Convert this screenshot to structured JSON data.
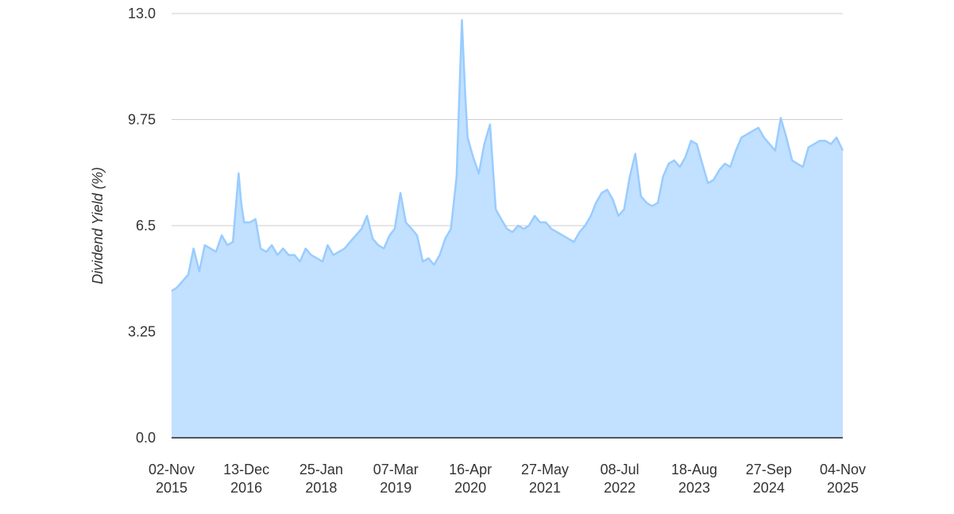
{
  "chart_data": {
    "type": "area",
    "title": "",
    "xlabel": "",
    "ylabel": "Dividend Yield (%)",
    "ylim": [
      0,
      13
    ],
    "xlim": [
      "2015-11-02",
      "2025-11-04"
    ],
    "yticks": [
      "0.0",
      "3.25",
      "6.5",
      "9.75",
      "13.0"
    ],
    "xticks": [
      {
        "date": "2015-11-02",
        "line1": "02-Nov",
        "line2": "2015"
      },
      {
        "date": "2016-12-13",
        "line1": "13-Dec",
        "line2": "2016"
      },
      {
        "date": "2018-01-25",
        "line1": "25-Jan",
        "line2": "2018"
      },
      {
        "date": "2019-03-07",
        "line1": "07-Mar",
        "line2": "2019"
      },
      {
        "date": "2020-04-16",
        "line1": "16-Apr",
        "line2": "2020"
      },
      {
        "date": "2021-05-27",
        "line1": "27-May",
        "line2": "2021"
      },
      {
        "date": "2022-07-08",
        "line1": "08-Jul",
        "line2": "2022"
      },
      {
        "date": "2023-08-18",
        "line1": "18-Aug",
        "line2": "2023"
      },
      {
        "date": "2024-09-27",
        "line1": "27-Sep",
        "line2": "2024"
      },
      {
        "date": "2025-11-04",
        "line1": "04-Nov",
        "line2": "2025"
      }
    ],
    "grid": true,
    "colors": {
      "line": "#99ccff",
      "fill": "#c2e0ff",
      "grid": "#cccccc",
      "baseline": "#333333"
    },
    "series": [
      {
        "x": [
          "2015-11-02",
          "2015-12-01",
          "2016-01-01",
          "2016-02-01",
          "2016-03-01",
          "2016-04-01",
          "2016-05-01",
          "2016-06-01",
          "2016-07-01",
          "2016-08-01",
          "2016-09-01",
          "2016-10-01",
          "2016-11-01",
          "2016-11-15",
          "2016-12-01",
          "2017-01-01",
          "2017-02-01",
          "2017-03-01",
          "2017-04-01",
          "2017-05-01",
          "2017-06-01",
          "2017-07-01",
          "2017-08-01",
          "2017-09-01",
          "2017-10-01",
          "2017-11-01",
          "2017-12-01",
          "2018-01-01",
          "2018-02-01",
          "2018-03-01",
          "2018-04-01",
          "2018-05-01",
          "2018-06-01",
          "2018-07-01",
          "2018-08-01",
          "2018-09-01",
          "2018-10-01",
          "2018-11-01",
          "2018-12-01",
          "2019-01-01",
          "2019-02-01",
          "2019-03-01",
          "2019-04-01",
          "2019-05-01",
          "2019-06-01",
          "2019-07-01",
          "2019-08-01",
          "2019-09-01",
          "2019-10-01",
          "2019-11-01",
          "2019-12-01",
          "2020-01-01",
          "2020-02-01",
          "2020-03-01",
          "2020-03-19",
          "2020-04-01",
          "2020-05-01",
          "2020-06-01",
          "2020-07-01",
          "2020-08-01",
          "2020-09-01",
          "2020-10-01",
          "2020-11-01",
          "2020-12-01",
          "2021-01-01",
          "2021-02-01",
          "2021-03-01",
          "2021-04-01",
          "2021-05-01",
          "2021-06-01",
          "2021-07-01",
          "2021-08-01",
          "2021-09-01",
          "2021-10-01",
          "2021-11-01",
          "2021-12-01",
          "2022-01-01",
          "2022-02-01",
          "2022-03-01",
          "2022-04-01",
          "2022-05-01",
          "2022-06-01",
          "2022-07-01",
          "2022-08-01",
          "2022-09-01",
          "2022-10-01",
          "2022-11-01",
          "2022-12-01",
          "2023-01-01",
          "2023-02-01",
          "2023-03-01",
          "2023-04-01",
          "2023-05-01",
          "2023-06-01",
          "2023-07-01",
          "2023-08-01",
          "2023-09-01",
          "2023-10-01",
          "2023-11-01",
          "2023-12-01",
          "2024-01-01",
          "2024-02-01",
          "2024-03-01",
          "2024-04-01",
          "2024-05-01",
          "2024-06-01",
          "2024-07-01",
          "2024-08-01",
          "2024-09-01",
          "2024-10-01",
          "2024-11-01",
          "2024-12-01",
          "2025-01-01",
          "2025-02-01",
          "2025-03-01",
          "2025-04-01",
          "2025-05-01",
          "2025-06-01",
          "2025-07-01",
          "2025-08-01",
          "2025-09-01",
          "2025-10-01",
          "2025-11-04"
        ],
        "y": [
          4.5,
          4.6,
          4.8,
          5.0,
          5.8,
          5.1,
          5.9,
          5.8,
          5.7,
          6.2,
          5.9,
          6.0,
          8.1,
          7.2,
          6.6,
          6.6,
          6.7,
          5.8,
          5.7,
          5.9,
          5.6,
          5.8,
          5.6,
          5.6,
          5.4,
          5.8,
          5.6,
          5.5,
          5.4,
          5.9,
          5.6,
          5.7,
          5.8,
          6.0,
          6.2,
          6.4,
          6.8,
          6.1,
          5.9,
          5.8,
          6.2,
          6.4,
          7.5,
          6.6,
          6.4,
          6.2,
          5.4,
          5.5,
          5.3,
          5.6,
          6.1,
          6.4,
          8.0,
          12.8,
          10.5,
          9.2,
          8.6,
          8.1,
          9.0,
          9.6,
          7.0,
          6.7,
          6.4,
          6.3,
          6.5,
          6.4,
          6.5,
          6.8,
          6.6,
          6.6,
          6.4,
          6.3,
          6.2,
          6.1,
          6.0,
          6.3,
          6.5,
          6.8,
          7.2,
          7.5,
          7.6,
          7.3,
          6.8,
          7.0,
          8.0,
          8.7,
          7.4,
          7.2,
          7.1,
          7.2,
          8.0,
          8.4,
          8.5,
          8.3,
          8.6,
          9.1,
          9.0,
          8.4,
          7.8,
          7.9,
          8.2,
          8.4,
          8.3,
          8.8,
          9.2,
          9.3,
          9.4,
          9.5,
          9.2,
          9.0,
          8.8,
          9.8,
          9.2,
          8.5,
          8.4,
          8.3,
          8.9,
          9.0,
          9.1,
          9.1,
          9.0,
          9.2,
          8.8
        ]
      }
    ]
  }
}
